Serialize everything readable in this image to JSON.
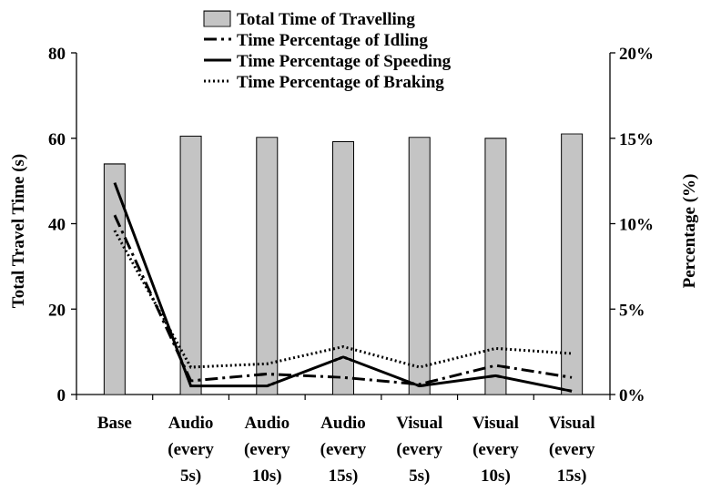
{
  "chart_data": {
    "type": "bar",
    "categories": [
      [
        "Base"
      ],
      [
        "Audio",
        "(every",
        "5s)"
      ],
      [
        "Audio",
        "(every",
        "10s)"
      ],
      [
        "Audio",
        "(every",
        "15s)"
      ],
      [
        "Visual",
        "(every",
        "5s)"
      ],
      [
        "Visual",
        "(every",
        "10s)"
      ],
      [
        "Visual",
        "(every",
        "15s)"
      ]
    ],
    "ylabel": "Total Travel Time (s)",
    "y2label": "Percentage (%)",
    "ylim": [
      0,
      80
    ],
    "yticks": [
      "0",
      "20",
      "40",
      "60",
      "80"
    ],
    "y2lim": [
      0,
      20
    ],
    "y2ticks": [
      "0%",
      "5%",
      "10%",
      "15%",
      "20%"
    ],
    "grid": false,
    "legend_position": "top",
    "series": [
      {
        "name": "Total Time of Travelling",
        "kind": "bar",
        "axis": "left",
        "style": "hatched",
        "values": [
          54,
          60.5,
          60.2,
          59.2,
          60.2,
          60,
          61
        ]
      },
      {
        "name": "Time Percentage of Idling",
        "kind": "line",
        "axis": "right",
        "style": "dash-dot",
        "values": [
          10.5,
          0.8,
          1.2,
          1.0,
          0.6,
          1.7,
          1.0
        ]
      },
      {
        "name": "Time Percentage of Speeding",
        "kind": "line",
        "axis": "right",
        "style": "solid",
        "values": [
          12.4,
          0.5,
          0.5,
          2.2,
          0.5,
          1.1,
          0.2
        ]
      },
      {
        "name": "Time Percentage of Braking",
        "kind": "line",
        "axis": "right",
        "style": "dotted",
        "values": [
          9.6,
          1.6,
          1.8,
          2.8,
          1.6,
          2.7,
          2.4
        ]
      }
    ]
  }
}
